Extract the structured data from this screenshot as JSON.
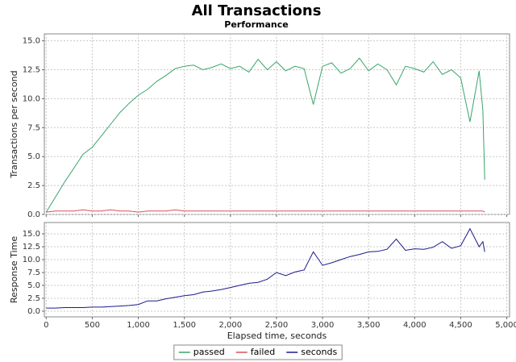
{
  "chart_data": [
    {
      "type": "line",
      "title": "All Transactions",
      "subtitle": "Performance",
      "ylabel": "Transactions per second",
      "x": [
        0,
        100,
        200,
        300,
        400,
        500,
        600,
        700,
        800,
        900,
        1000,
        1100,
        1200,
        1300,
        1400,
        1500,
        1600,
        1700,
        1800,
        1900,
        2000,
        2100,
        2200,
        2300,
        2400,
        2500,
        2600,
        2700,
        2800,
        2900,
        3000,
        3100,
        3200,
        3300,
        3400,
        3500,
        3600,
        3700,
        3800,
        3900,
        4000,
        4100,
        4200,
        4300,
        4400,
        4500,
        4600,
        4700,
        4740,
        4760
      ],
      "series": [
        {
          "name": "passed",
          "color": "#3aa46a",
          "values": [
            0.2,
            1.5,
            2.8,
            4.0,
            5.2,
            5.8,
            6.8,
            7.8,
            8.8,
            9.6,
            10.3,
            10.8,
            11.5,
            12.0,
            12.6,
            12.8,
            12.9,
            12.5,
            12.7,
            13.0,
            12.6,
            12.8,
            12.3,
            13.4,
            12.5,
            13.2,
            12.4,
            12.8,
            12.6,
            9.5,
            12.8,
            13.1,
            12.2,
            12.6,
            13.5,
            12.4,
            13.0,
            12.5,
            11.2,
            12.8,
            12.6,
            12.3,
            13.2,
            12.1,
            12.5,
            11.8,
            8.0,
            12.4,
            9.0,
            3.0
          ]
        },
        {
          "name": "failed",
          "color": "#d9505a",
          "values": [
            0.2,
            0.3,
            0.3,
            0.3,
            0.4,
            0.3,
            0.3,
            0.4,
            0.3,
            0.3,
            0.2,
            0.3,
            0.3,
            0.3,
            0.4,
            0.3,
            0.3,
            0.3,
            0.3,
            0.3,
            0.3,
            0.3,
            0.3,
            0.3,
            0.3,
            0.3,
            0.3,
            0.3,
            0.3,
            0.3,
            0.3,
            0.3,
            0.3,
            0.3,
            0.3,
            0.3,
            0.3,
            0.3,
            0.3,
            0.3,
            0.3,
            0.3,
            0.3,
            0.3,
            0.3,
            0.3,
            0.3,
            0.3,
            0.3,
            0.2
          ]
        }
      ],
      "xlim": [
        -20,
        5030
      ],
      "xticks": [
        0,
        500,
        1000,
        1500,
        2000,
        2500,
        3000,
        3500,
        4000,
        4500,
        5000
      ],
      "ylim": [
        0,
        15.6
      ],
      "yticks": [
        {
          "value": 0,
          "label": "0.0"
        },
        2.5,
        {
          "value": 5,
          "label": "5.0"
        },
        7.5,
        {
          "value": 10,
          "label": "10.0"
        },
        12.5,
        {
          "value": 15,
          "label": "15.0"
        }
      ],
      "grid": true
    },
    {
      "type": "line",
      "ylabel": "Response Time",
      "xlabel": "Elapsed time, seconds",
      "x": [
        0,
        100,
        200,
        300,
        400,
        500,
        600,
        700,
        800,
        900,
        1000,
        1100,
        1200,
        1300,
        1400,
        1500,
        1600,
        1700,
        1800,
        1900,
        2000,
        2100,
        2200,
        2300,
        2400,
        2500,
        2600,
        2700,
        2800,
        2900,
        3000,
        3100,
        3200,
        3300,
        3400,
        3500,
        3600,
        3700,
        3800,
        3900,
        4000,
        4100,
        4200,
        4300,
        4400,
        4500,
        4600,
        4700,
        4740,
        4760
      ],
      "series": [
        {
          "name": "seconds",
          "color": "#1a1a8c",
          "values": [
            0.6,
            0.6,
            0.7,
            0.7,
            0.7,
            0.8,
            0.8,
            0.9,
            1.0,
            1.1,
            1.3,
            2.0,
            2.0,
            2.4,
            2.7,
            3.0,
            3.2,
            3.7,
            3.9,
            4.2,
            4.6,
            5.0,
            5.4,
            5.6,
            6.2,
            7.5,
            6.9,
            7.6,
            8.0,
            11.5,
            8.9,
            9.4,
            10.0,
            10.6,
            11.0,
            11.5,
            11.6,
            12.0,
            14.0,
            11.8,
            12.1,
            12.0,
            12.4,
            13.5,
            12.2,
            12.7,
            16.0,
            12.5,
            13.5,
            11.5
          ]
        }
      ],
      "xlim": [
        -20,
        5030
      ],
      "xticks": [
        0,
        500,
        {
          "value": 1000,
          "label": "1,000"
        },
        {
          "value": 1500,
          "label": "1,500"
        },
        {
          "value": 2000,
          "label": "2,000"
        },
        {
          "value": 2500,
          "label": "2,500"
        },
        {
          "value": 3000,
          "label": "3,000"
        },
        {
          "value": 3500,
          "label": "3,500"
        },
        {
          "value": 4000,
          "label": "4,000"
        },
        {
          "value": 4500,
          "label": "4,500"
        },
        {
          "value": 5000,
          "label": "5,000"
        }
      ],
      "ylim": [
        -1.1,
        17.2
      ],
      "yticks": [
        {
          "value": 0,
          "label": "0.0"
        },
        2.5,
        {
          "value": 5,
          "label": "5.0"
        },
        7.5,
        {
          "value": 10,
          "label": "10.0"
        },
        12.5,
        {
          "value": 15,
          "label": "15.0"
        }
      ],
      "grid": true
    }
  ]
}
